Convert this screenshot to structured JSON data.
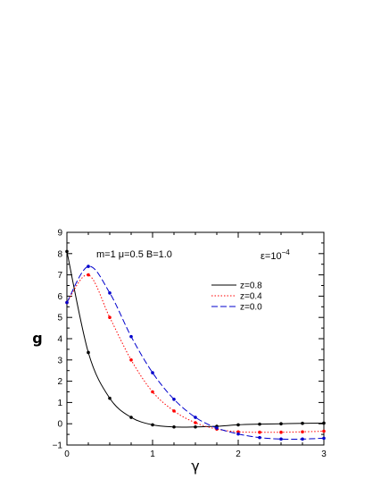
{
  "chart_data": {
    "type": "line",
    "xlabel": "γ",
    "ylabel": "g",
    "xlim": [
      0,
      3
    ],
    "ylim": [
      -1,
      9
    ],
    "xticks": [
      "0",
      "1",
      "2",
      "3"
    ],
    "yticks": [
      "−1",
      "0",
      "1",
      "2",
      "3",
      "4",
      "5",
      "6",
      "7",
      "8",
      "9"
    ],
    "annotation_params": "m=1 μ=0.5 B=1.0",
    "annotation_eps_base": "ε=10",
    "annotation_eps_exp": "−4",
    "legend_position": "right",
    "grid": false,
    "series": [
      {
        "name": "z=0.8",
        "color": "#000000",
        "dash": "solid",
        "x": [
          0,
          0.25,
          0.5,
          0.75,
          1.0,
          1.25,
          1.5,
          1.75,
          2.0,
          2.25,
          2.5,
          2.75,
          3.0
        ],
        "y": [
          8.1,
          3.35,
          1.2,
          0.3,
          -0.05,
          -0.15,
          -0.15,
          -0.12,
          -0.05,
          -0.02,
          0.0,
          0.02,
          0.03
        ]
      },
      {
        "name": "z=0.4",
        "color": "#ff0000",
        "dash": "dotted",
        "x": [
          0,
          0.25,
          0.5,
          0.75,
          1.0,
          1.25,
          1.5,
          1.75,
          2.0,
          2.25,
          2.5,
          2.75,
          3.0
        ],
        "y": [
          5.7,
          7.0,
          5.0,
          3.0,
          1.5,
          0.6,
          0.05,
          -0.25,
          -0.38,
          -0.4,
          -0.4,
          -0.38,
          -0.35
        ]
      },
      {
        "name": "z=0.0",
        "color": "#0000cc",
        "dash": "dashed",
        "x": [
          0,
          0.25,
          0.5,
          0.75,
          1.0,
          1.25,
          1.5,
          1.75,
          2.0,
          2.25,
          2.5,
          2.75,
          3.0
        ],
        "y": [
          5.7,
          7.4,
          6.15,
          4.1,
          2.4,
          1.15,
          0.3,
          -0.2,
          -0.48,
          -0.65,
          -0.72,
          -0.72,
          -0.68
        ]
      }
    ]
  }
}
